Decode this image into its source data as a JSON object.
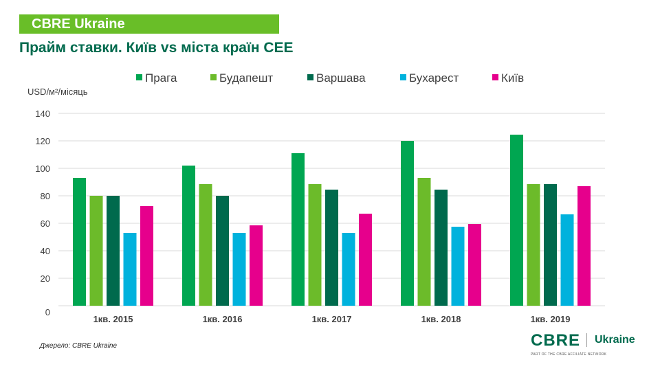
{
  "header": {
    "brand_banner": "CBRE Ukraine",
    "title": "Прайм ставки. Київ vs міста країн CEE"
  },
  "footer": {
    "source": "Джерело:  CBRE Ukraine",
    "logo_main": "CBRE",
    "logo_region": "Ukraine",
    "logo_tagline": "PART OF THE CBRE AFFILIATE NETWORK"
  },
  "colors": {
    "banner": "#69be28",
    "title": "#006a4d"
  },
  "chart_data": {
    "type": "bar",
    "title": "Прайм ставки. Київ vs міста країн CEE",
    "xlabel": "",
    "ylabel": "USD/м²/місяць",
    "ylim": [
      0,
      140
    ],
    "yticks": [
      0,
      20,
      40,
      60,
      80,
      100,
      120,
      140
    ],
    "grid": true,
    "legend_position": "top",
    "categories": [
      "1кв. 2015",
      "1кв. 2016",
      "1кв. 2017",
      "1кв. 2018",
      "1кв. 2019"
    ],
    "series": [
      {
        "name": "Прага",
        "color": "#00a651",
        "values": [
          93,
          102,
          111,
          120,
          124.5
        ]
      },
      {
        "name": "Будапешт",
        "color": "#6cbb2a",
        "values": [
          80,
          88.5,
          88.5,
          93,
          88.5
        ]
      },
      {
        "name": "Варшава",
        "color": "#006a4d",
        "values": [
          80,
          80,
          84.5,
          84.5,
          88.5
        ]
      },
      {
        "name": "Бухарест",
        "color": "#00b2dd",
        "values": [
          53,
          53,
          53,
          57.5,
          66.5
        ]
      },
      {
        "name": "Київ",
        "color": "#e6008c",
        "values": [
          72.5,
          58.5,
          67,
          59.5,
          87
        ]
      }
    ]
  }
}
